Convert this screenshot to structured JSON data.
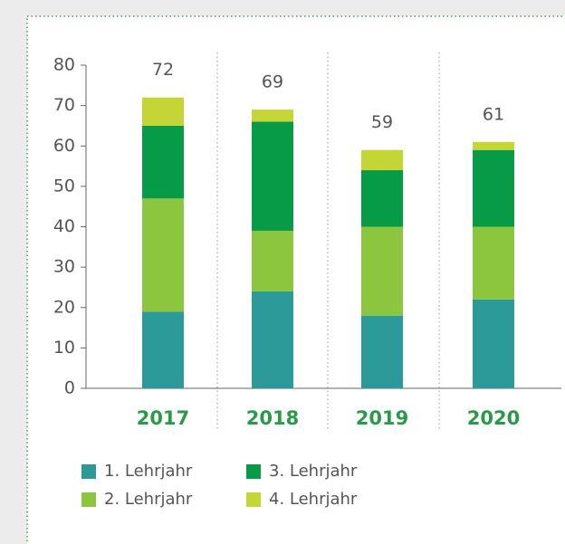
{
  "chart_data": {
    "type": "stacked_bar",
    "categories": [
      "2017",
      "2018",
      "2019",
      "2020"
    ],
    "series": [
      {
        "name": "1. Lehrjahr",
        "color": "#2b9a98",
        "values": [
          19,
          24,
          18,
          22
        ]
      },
      {
        "name": "2. Lehrjahr",
        "color": "#8cc63f",
        "values": [
          28,
          15,
          22,
          18
        ]
      },
      {
        "name": "3. Lehrjahr",
        "color": "#079a47",
        "values": [
          18,
          27,
          14,
          19
        ]
      },
      {
        "name": "4. Lehrjahr",
        "color": "#c3d636",
        "values": [
          7,
          3,
          5,
          2
        ]
      }
    ],
    "totals": [
      72,
      69,
      59,
      61
    ],
    "ylim": [
      0,
      80
    ],
    "yticks": [
      0,
      10,
      20,
      30,
      40,
      50,
      60,
      70,
      80
    ]
  }
}
